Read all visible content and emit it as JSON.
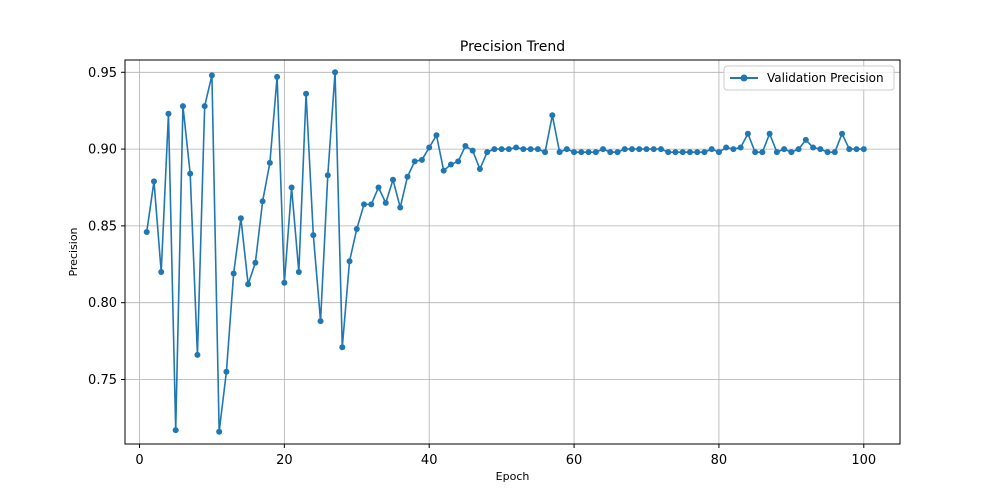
{
  "chart_data": {
    "type": "line",
    "title": "Precision Trend",
    "xlabel": "Epoch",
    "ylabel": "Precision",
    "xlim": [
      -2,
      105
    ],
    "ylim": [
      0.708,
      0.958
    ],
    "x_ticks": [
      0,
      20,
      40,
      60,
      80,
      100
    ],
    "y_ticks": [
      0.75,
      0.8,
      0.85,
      0.9,
      0.95
    ],
    "x_tick_labels": [
      "0",
      "20",
      "40",
      "60",
      "80",
      "100"
    ],
    "y_tick_labels": [
      "0.75",
      "0.80",
      "0.85",
      "0.90",
      "0.95"
    ],
    "grid": true,
    "legend_position": "top-right",
    "series": [
      {
        "name": "Validation Precision",
        "color": "#1f77b4",
        "marker": "circle",
        "x": [
          1,
          2,
          3,
          4,
          5,
          6,
          7,
          8,
          9,
          10,
          11,
          12,
          13,
          14,
          15,
          16,
          17,
          18,
          19,
          20,
          21,
          22,
          23,
          24,
          25,
          26,
          27,
          28,
          29,
          30,
          31,
          32,
          33,
          34,
          35,
          36,
          37,
          38,
          39,
          40,
          41,
          42,
          43,
          44,
          45,
          46,
          47,
          48,
          49,
          50,
          51,
          52,
          53,
          54,
          55,
          56,
          57,
          58,
          59,
          60,
          61,
          62,
          63,
          64,
          65,
          66,
          67,
          68,
          69,
          70,
          71,
          72,
          73,
          74,
          75,
          76,
          77,
          78,
          79,
          80,
          81,
          82,
          83,
          84,
          85,
          86,
          87,
          88,
          89,
          90,
          91,
          92,
          93,
          94,
          95,
          96,
          97,
          98,
          99,
          100
        ],
        "values": [
          0.846,
          0.879,
          0.82,
          0.923,
          0.717,
          0.928,
          0.884,
          0.766,
          0.928,
          0.948,
          0.716,
          0.755,
          0.819,
          0.855,
          0.812,
          0.826,
          0.866,
          0.891,
          0.947,
          0.813,
          0.875,
          0.82,
          0.936,
          0.844,
          0.788,
          0.883,
          0.95,
          0.771,
          0.827,
          0.848,
          0.864,
          0.864,
          0.875,
          0.865,
          0.88,
          0.862,
          0.882,
          0.892,
          0.893,
          0.901,
          0.909,
          0.886,
          0.89,
          0.892,
          0.902,
          0.899,
          0.887,
          0.898,
          0.9,
          0.9,
          0.9,
          0.901,
          0.9,
          0.9,
          0.9,
          0.898,
          0.922,
          0.898,
          0.9,
          0.898,
          0.898,
          0.898,
          0.898,
          0.9,
          0.898,
          0.898,
          0.9,
          0.9,
          0.9,
          0.9,
          0.9,
          0.9,
          0.898,
          0.898,
          0.898,
          0.898,
          0.898,
          0.898,
          0.9,
          0.898,
          0.901,
          0.9,
          0.901,
          0.91,
          0.898,
          0.898,
          0.91,
          0.898,
          0.9,
          0.898,
          0.9,
          0.906,
          0.901,
          0.9,
          0.898,
          0.898,
          0.91,
          0.9,
          0.9,
          0.9
        ]
      }
    ]
  }
}
